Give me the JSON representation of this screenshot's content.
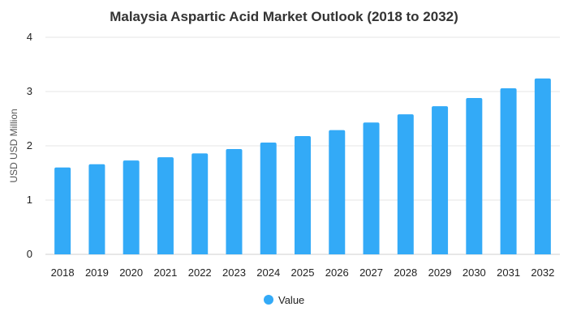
{
  "chart_data": {
    "type": "bar",
    "title": "Malaysia Aspartic Acid Market Outlook (2018 to 2032)",
    "xlabel": "",
    "ylabel": "USD USD Million",
    "ylim": [
      0,
      4
    ],
    "yticks": [
      0,
      1,
      2,
      3,
      4
    ],
    "categories": [
      "2018",
      "2019",
      "2020",
      "2021",
      "2022",
      "2023",
      "2024",
      "2025",
      "2026",
      "2027",
      "2028",
      "2029",
      "2030",
      "2031",
      "2032"
    ],
    "series": [
      {
        "name": "Value",
        "color": "#33aaf7",
        "values": [
          1.6,
          1.66,
          1.73,
          1.79,
          1.86,
          1.94,
          2.06,
          2.18,
          2.29,
          2.43,
          2.58,
          2.73,
          2.88,
          3.06,
          3.24
        ]
      }
    ],
    "grid": true,
    "legend": "bottom-center"
  }
}
